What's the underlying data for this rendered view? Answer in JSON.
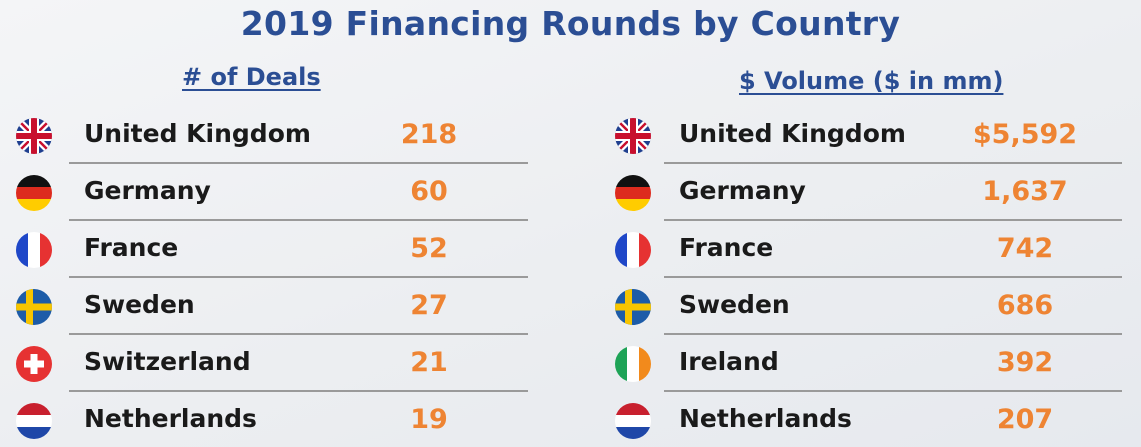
{
  "chart_data": [
    {
      "type": "table",
      "title": "2019 Financing Rounds by Country",
      "column_header": "# of Deals",
      "rows": [
        {
          "country": "United Kingdom",
          "flag": "uk-flag-icon",
          "value": "218"
        },
        {
          "country": "Germany",
          "flag": "germany-flag-icon",
          "value": "60"
        },
        {
          "country": "France",
          "flag": "france-flag-icon",
          "value": "52"
        },
        {
          "country": "Sweden",
          "flag": "sweden-flag-icon",
          "value": "27"
        },
        {
          "country": "Switzerland",
          "flag": "switzerland-flag-icon",
          "value": "21"
        },
        {
          "country": "Netherlands",
          "flag": "netherlands-flag-icon",
          "value": "19"
        }
      ]
    },
    {
      "type": "table",
      "column_header": "$ Volume ($ in mm)",
      "rows": [
        {
          "country": "United Kingdom",
          "flag": "uk-flag-icon",
          "value": "$5,592"
        },
        {
          "country": "Germany",
          "flag": "germany-flag-icon",
          "value": "1,637"
        },
        {
          "country": "France",
          "flag": "france-flag-icon",
          "value": "742"
        },
        {
          "country": "Sweden",
          "flag": "sweden-flag-icon",
          "value": "686"
        },
        {
          "country": "Ireland",
          "flag": "ireland-flag-icon",
          "value": "392"
        },
        {
          "country": "Netherlands",
          "flag": "netherlands-flag-icon",
          "value": "207"
        }
      ]
    }
  ],
  "colors": {
    "title": "#2b4e94",
    "value": "#ee8433",
    "text": "#1a1a1a",
    "divider": "#9a9a9a"
  }
}
